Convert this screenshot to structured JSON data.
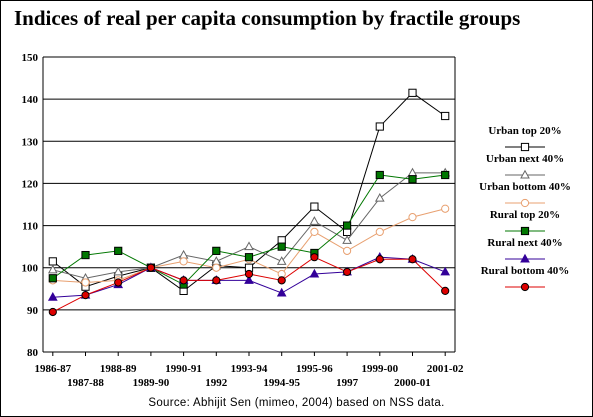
{
  "chart_data": {
    "type": "line",
    "title": "Indices of real per capita consumption by fractile groups",
    "xlabel": "",
    "ylabel": "",
    "ylim": [
      80,
      150
    ],
    "yticks": [
      80,
      90,
      100,
      110,
      120,
      130,
      140,
      150
    ],
    "grid": true,
    "legend_position": "right",
    "categories": [
      "1986-87",
      "1987-88",
      "1988-89",
      "1989-90",
      "1990-91",
      "1992",
      "1993-94",
      "1994-95",
      "1995-96",
      "1997",
      "1999-00",
      "2000-01",
      "2001-02"
    ],
    "category_rows": [
      0,
      1,
      0,
      1,
      0,
      1,
      0,
      1,
      0,
      1,
      0,
      1,
      0
    ],
    "series": [
      {
        "name": "Urban top 20%",
        "color": "#000000",
        "marker": "square-open",
        "values": [
          101.5,
          95.5,
          98,
          100,
          94.5,
          100.5,
          100,
          106.5,
          114.5,
          108.5,
          133.5,
          141.5,
          136
        ]
      },
      {
        "name": "Urban next 40%",
        "color": "#666666",
        "marker": "triangle-open",
        "values": [
          99.5,
          97.5,
          99,
          100,
          103,
          101.5,
          105,
          101.5,
          111,
          106.5,
          116.5,
          122.5,
          122.5
        ]
      },
      {
        "name": "Urban bottom 40%",
        "color": "#e8a070",
        "marker": "circle-open",
        "values": [
          97,
          96.5,
          97,
          100,
          101.5,
          100,
          102,
          98.5,
          108.5,
          104,
          108.5,
          112,
          114
        ]
      },
      {
        "name": "Rural top 20%",
        "color": "#007700",
        "marker": "square-filled",
        "values": [
          97.5,
          103,
          104,
          100,
          96,
          104,
          102.5,
          105,
          103.5,
          110,
          122,
          121,
          122
        ]
      },
      {
        "name": "Rural next 40%",
        "color": "#330099",
        "marker": "triangle-filled",
        "values": [
          93,
          93.5,
          96,
          100,
          97,
          97,
          97,
          94,
          98.5,
          99,
          102.5,
          102,
          99
        ]
      },
      {
        "name": "Rural bottom 40%",
        "color": "#dd0000",
        "marker": "circle-filled",
        "values": [
          89.5,
          93.5,
          96.5,
          100,
          97,
          97,
          98.5,
          97,
          102.5,
          99,
          102,
          102,
          94.5
        ]
      }
    ]
  },
  "source": "Source:  Abhijit Sen (mimeo, 2004) based on NSS data."
}
